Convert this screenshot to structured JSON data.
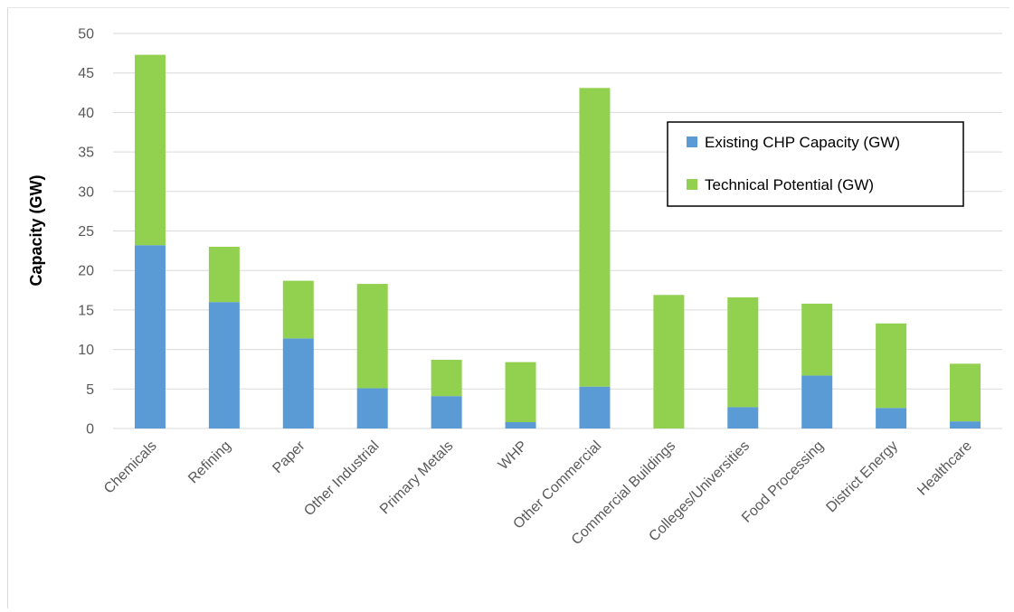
{
  "chart_data": {
    "type": "bar",
    "stacked": true,
    "title": "",
    "xlabel": "",
    "ylabel": "Capacity (GW)",
    "ylim": [
      0,
      50
    ],
    "yticks": [
      0,
      5,
      10,
      15,
      20,
      25,
      30,
      35,
      40,
      45,
      50
    ],
    "grid": true,
    "legend_position": "upper-right",
    "categories": [
      "Chemicals",
      "Refining",
      "Paper",
      "Other Industrial",
      "Primary Metals",
      "WHP",
      "Other Commercial",
      "Commercial Buildings",
      "Colleges/Universities",
      "Food Processing",
      "District Energy",
      "Healthcare"
    ],
    "series": [
      {
        "name": "Existing CHP Capacity (GW)",
        "color": "#5b9bd5",
        "values": [
          23.2,
          16.0,
          11.4,
          5.1,
          4.1,
          0.8,
          5.3,
          0.0,
          2.7,
          6.7,
          2.6,
          0.9
        ]
      },
      {
        "name": "Technical Potential (GW)",
        "color": "#92d050",
        "values": [
          24.1,
          7.0,
          7.3,
          13.2,
          4.6,
          7.6,
          37.8,
          16.9,
          13.9,
          9.1,
          10.7,
          7.3
        ]
      }
    ]
  }
}
